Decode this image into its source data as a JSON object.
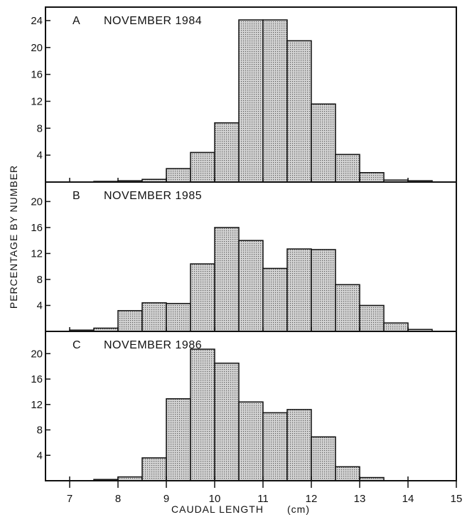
{
  "figure": {
    "ylabel": "PERCENTAGE BY NUMBER",
    "xlabel": "CAUDAL LENGTH",
    "xunit": "(cm)",
    "bar_fill": "#c9c9c9"
  },
  "chart_data": [
    {
      "type": "bar",
      "panel": "A",
      "title": "NOVEMBER 1984",
      "xlim": [
        6.5,
        15
      ],
      "ylim": [
        0,
        26
      ],
      "yticks": [
        4,
        8,
        12,
        16,
        20,
        24
      ],
      "xticks": [
        7,
        8,
        9,
        10,
        11,
        12,
        13,
        14,
        15
      ],
      "bin_width": 0.5,
      "bin_starts": [
        7.5,
        8.0,
        8.5,
        9.0,
        9.5,
        10.0,
        10.5,
        11.0,
        11.5,
        12.0,
        12.5,
        13.0,
        13.5,
        14.0
      ],
      "values": [
        0.1,
        0.2,
        0.4,
        2.0,
        4.4,
        8.8,
        24.1,
        24.1,
        21.0,
        11.6,
        4.1,
        1.4,
        0.3,
        0.2
      ]
    },
    {
      "type": "bar",
      "panel": "B",
      "title": "NOVEMBER 1985",
      "xlim": [
        6.5,
        15
      ],
      "ylim": [
        0,
        23
      ],
      "yticks": [
        4,
        8,
        12,
        16,
        20
      ],
      "xticks": [
        7,
        8,
        9,
        10,
        11,
        12,
        13,
        14,
        15
      ],
      "bin_width": 0.5,
      "bin_starts": [
        7.0,
        7.5,
        8.0,
        8.5,
        9.0,
        9.5,
        10.0,
        10.5,
        11.0,
        11.5,
        12.0,
        12.5,
        13.0,
        13.5,
        14.0
      ],
      "values": [
        0.2,
        0.5,
        3.2,
        4.4,
        4.3,
        10.4,
        16.0,
        14.0,
        9.7,
        12.7,
        12.6,
        7.2,
        4.0,
        1.3,
        0.3
      ]
    },
    {
      "type": "bar",
      "panel": "C",
      "title": "NOVEMBER 1986",
      "xlim": [
        6.5,
        15
      ],
      "ylim": [
        0,
        23.5
      ],
      "yticks": [
        4,
        8,
        12,
        16,
        20
      ],
      "xticks": [
        7,
        8,
        9,
        10,
        11,
        12,
        13,
        14,
        15
      ],
      "bin_width": 0.5,
      "bin_starts": [
        7.5,
        8.0,
        8.5,
        9.0,
        9.5,
        10.0,
        10.5,
        11.0,
        11.5,
        12.0,
        12.5,
        13.0
      ],
      "values": [
        0.2,
        0.6,
        3.6,
        12.9,
        20.7,
        18.5,
        12.4,
        10.7,
        11.2,
        6.9,
        2.2,
        0.5
      ]
    }
  ]
}
